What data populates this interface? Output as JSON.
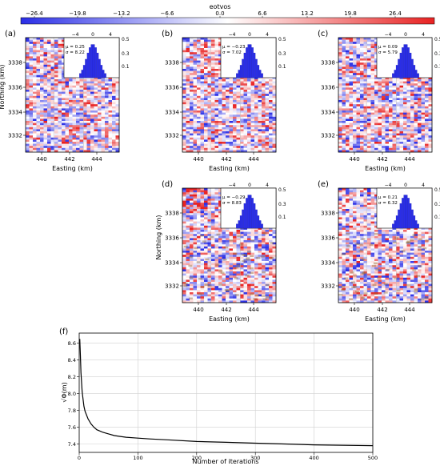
{
  "colorbar": {
    "title": "eotvos",
    "ticks": [
      "−26.4",
      "−19.8",
      "−13.2",
      "−6.6",
      "0.0",
      "6.6",
      "13.2",
      "19.8",
      "26.4"
    ],
    "colors": {
      "negative": "#2a2ee6",
      "zero": "#ffffff",
      "positive": "#e82222"
    }
  },
  "panels": [
    {
      "label": "(a)",
      "mu": "μ = 0.25",
      "sigma": "σ = 8.22",
      "show_ylabel": true,
      "seed": 11
    },
    {
      "label": "(b)",
      "mu": "μ = −0.23",
      "sigma": "σ = 7.02",
      "show_ylabel": false,
      "seed": 23
    },
    {
      "label": "(c)",
      "mu": "μ = 0.09",
      "sigma": "σ = 5.79",
      "show_ylabel": false,
      "seed": 37
    },
    {
      "label": "(d)",
      "mu": "μ = −0.29",
      "sigma": "σ = 8.83",
      "show_ylabel": true,
      "seed": 41
    },
    {
      "label": "(e)",
      "mu": "μ = 0.21",
      "sigma": "σ = 6.32",
      "show_ylabel": false,
      "seed": 53
    }
  ],
  "map_axes": {
    "xlabel": "Easting (km)",
    "ylabel": "Northing (km)",
    "xticks": [
      "440",
      "442",
      "444"
    ],
    "yticks": [
      "3338",
      "3336",
      "3334",
      "3332"
    ]
  },
  "hist_axes": {
    "xticks": [
      "−4",
      "0",
      "4"
    ],
    "yticks": [
      "0.5",
      "0.3",
      "0.1"
    ]
  },
  "chart_data": {
    "type": "line",
    "label": "(f)",
    "xlabel": "Number of iterations",
    "ylabel": "√Φ(m)",
    "xlim": [
      0,
      500
    ],
    "ylim": [
      7.3,
      8.72
    ],
    "xticks": [
      "0",
      "100",
      "200",
      "300",
      "400",
      "500"
    ],
    "yticks": [
      "7.4",
      "7.6",
      "7.8",
      "8.0",
      "8.2",
      "8.4",
      "8.6"
    ],
    "grid": true,
    "series": [
      {
        "x": [
          1,
          2,
          3,
          5,
          8,
          10,
          15,
          20,
          25,
          30,
          40,
          50,
          60,
          70,
          80,
          100,
          120,
          150,
          200,
          250,
          300,
          350,
          400,
          450,
          500
        ],
        "y": [
          8.65,
          8.45,
          8.25,
          8.02,
          7.85,
          7.79,
          7.7,
          7.64,
          7.6,
          7.57,
          7.54,
          7.52,
          7.5,
          7.49,
          7.48,
          7.47,
          7.46,
          7.45,
          7.43,
          7.42,
          7.41,
          7.4,
          7.39,
          7.385,
          7.38
        ]
      }
    ]
  }
}
